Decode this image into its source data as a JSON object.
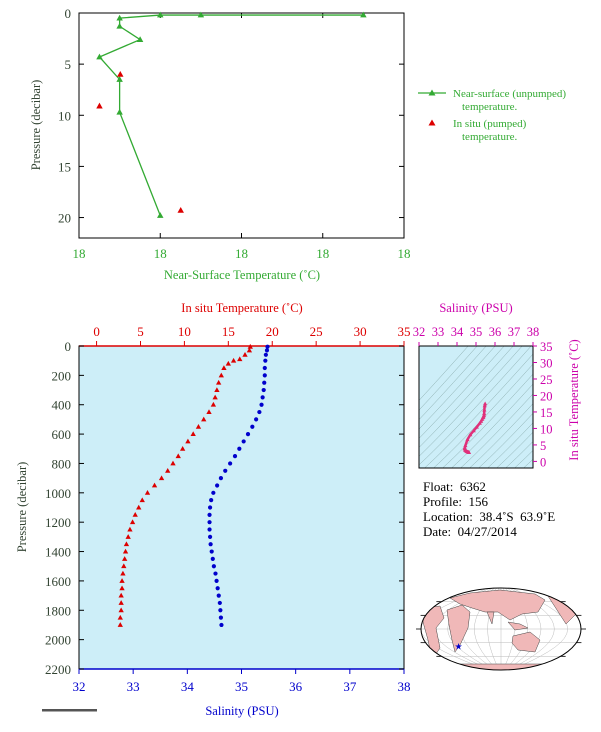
{
  "colors": {
    "green": "#33aa33",
    "red": "#dd0000",
    "blue": "#0000cc",
    "magenta": "#cc00aa",
    "pink": "#e0307a",
    "axis_text_dark": "#334433",
    "panel_bg": "#cdeef8",
    "land": "#f0b8b8",
    "ocean": "#ffffff"
  },
  "chart_data": [
    {
      "id": "near-surface",
      "type": "line",
      "xlabel": "Near-Surface Temperature (˚C)",
      "ylabel": "Pressure (decibar)",
      "x_tick_labels": [
        "18",
        "18",
        "18",
        "18",
        "18"
      ],
      "y_ticks": [
        0,
        5,
        10,
        15,
        20
      ],
      "ylim": [
        0,
        22
      ],
      "legend": [
        {
          "label_lines": [
            "Near-surface (unpumped)",
            "temperature."
          ],
          "marker": "line-triangle"
        },
        {
          "label_lines": [
            "In situ (pumped)",
            "temperature."
          ],
          "marker": "triangle"
        }
      ],
      "series": [
        {
          "name": "Near-surface (unpumped) temperature.",
          "pressure": [
            0.2,
            0.2,
            0.2,
            0.5,
            1.3,
            2.6,
            4.3,
            6.5,
            9.7,
            19.8
          ],
          "xpos": [
            0.875,
            0.375,
            0.25,
            0.125,
            0.125,
            0.188,
            0.063,
            0.125,
            0.125,
            0.25
          ]
        },
        {
          "name": "In situ (pumped) temperature.",
          "pressure": [
            6.0,
            9.1,
            19.3
          ],
          "xpos": [
            0.127,
            0.063,
            0.313
          ]
        }
      ]
    },
    {
      "id": "profile",
      "type": "scatter",
      "top_xlabel": "In situ Temperature (˚C)",
      "xlabel": "Salinity (PSU)",
      "ylabel": "Pressure (decibar)",
      "temp_ticks": [
        0,
        5,
        10,
        15,
        20,
        25,
        30,
        35
      ],
      "temp_xlim": [
        -2,
        35
      ],
      "sal_ticks": [
        32,
        33,
        34,
        35,
        36,
        37,
        38
      ],
      "sal_xlim": [
        32,
        38
      ],
      "y_ticks": [
        0,
        200,
        400,
        600,
        800,
        1000,
        1200,
        1400,
        1600,
        1800,
        2000,
        2200
      ],
      "ylim": [
        0,
        2200
      ],
      "temperature_profile": {
        "pressure": [
          5,
          30,
          60,
          90,
          100,
          120,
          150,
          200,
          250,
          300,
          350,
          400,
          450,
          500,
          550,
          600,
          650,
          700,
          750,
          800,
          850,
          900,
          950,
          1000,
          1050,
          1100,
          1150,
          1200,
          1250,
          1300,
          1350,
          1400,
          1450,
          1500,
          1550,
          1600,
          1650,
          1700,
          1750,
          1800,
          1850,
          1900
        ],
        "temperature": [
          17.5,
          17.4,
          16.9,
          16.3,
          15.6,
          15.0,
          14.5,
          14.2,
          13.9,
          13.7,
          13.5,
          13.3,
          12.8,
          12.2,
          11.6,
          11.0,
          10.4,
          9.8,
          9.3,
          8.7,
          8.1,
          7.4,
          6.6,
          5.8,
          5.2,
          4.8,
          4.4,
          4.1,
          3.8,
          3.6,
          3.4,
          3.3,
          3.2,
          3.1,
          3.0,
          2.9,
          2.9,
          2.8,
          2.8,
          2.8,
          2.7,
          2.7
        ]
      },
      "salinity_profile": {
        "pressure": [
          5,
          30,
          60,
          100,
          150,
          200,
          250,
          300,
          350,
          400,
          450,
          500,
          550,
          600,
          650,
          700,
          750,
          800,
          850,
          900,
          950,
          1000,
          1050,
          1100,
          1150,
          1200,
          1250,
          1300,
          1350,
          1400,
          1450,
          1500,
          1550,
          1600,
          1650,
          1700,
          1750,
          1800,
          1850,
          1900
        ],
        "salinity": [
          35.48,
          35.47,
          35.45,
          35.44,
          35.43,
          35.43,
          35.42,
          35.41,
          35.39,
          35.37,
          35.33,
          35.27,
          35.2,
          35.12,
          35.04,
          34.96,
          34.88,
          34.79,
          34.7,
          34.62,
          34.55,
          34.48,
          34.44,
          34.42,
          34.41,
          34.41,
          34.41,
          34.42,
          34.43,
          34.45,
          34.47,
          34.49,
          34.52,
          34.54,
          34.56,
          34.58,
          34.6,
          34.61,
          34.62,
          34.63
        ]
      }
    },
    {
      "id": "ts-diagram",
      "type": "line",
      "top_xlabel": "Salinity (PSU)",
      "ylabel": "In situ Temperature (˚C)",
      "sal_ticks": [
        32,
        33,
        34,
        35,
        36,
        37,
        38
      ],
      "sal_xlim": [
        32,
        38
      ],
      "temp_ticks": [
        0,
        5,
        10,
        15,
        20,
        25,
        30,
        35
      ],
      "temp_ylim": [
        -2,
        35
      ],
      "series": [
        {
          "salinity": [
            34.63,
            34.62,
            34.6,
            34.56,
            34.52,
            34.47,
            34.43,
            34.41,
            34.41,
            34.44,
            34.55,
            34.7,
            34.88,
            35.04,
            35.2,
            35.27,
            35.33,
            35.37,
            35.39,
            35.42,
            35.43,
            35.44,
            35.46,
            35.48
          ],
          "temperature": [
            2.7,
            2.8,
            2.8,
            2.9,
            3.0,
            3.2,
            3.4,
            3.8,
            4.1,
            4.8,
            6.6,
            8.1,
            9.3,
            10.4,
            11.6,
            12.2,
            12.8,
            13.3,
            13.5,
            13.9,
            14.5,
            15.6,
            16.9,
            17.5
          ]
        }
      ]
    }
  ],
  "info": {
    "float_label": "Float:",
    "float_value": "6362",
    "profile_label": "Profile:",
    "profile_value": "156",
    "location_label": "Location:",
    "location_value": "38.4˚S  63.9˚E",
    "date_label": "Date:",
    "date_value": "04/27/2014"
  },
  "map": {
    "marker_lon": 63.9,
    "marker_lat": -38.4,
    "marker_icon": "star-icon"
  }
}
